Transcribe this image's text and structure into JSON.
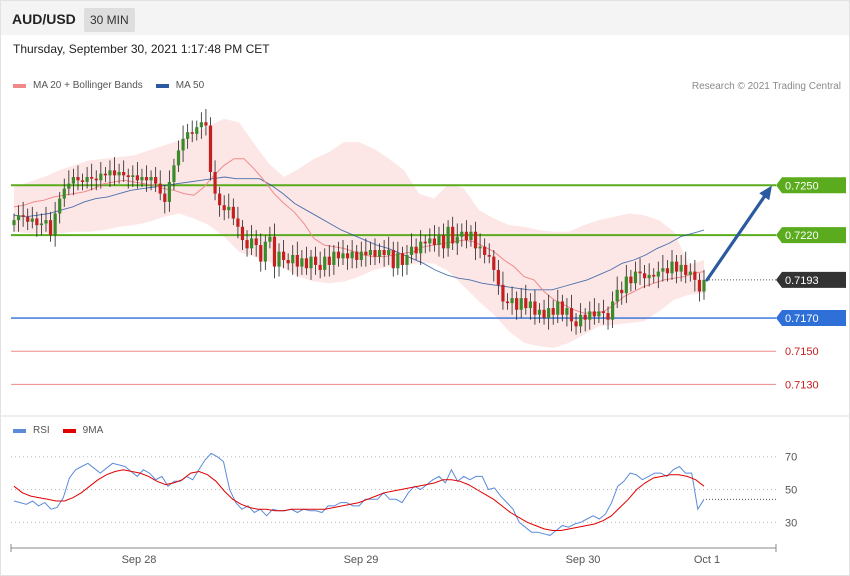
{
  "header": {
    "symbol": "AUD/USD",
    "timeframe": "30 MIN"
  },
  "datetime": "Thursday, September 30, 2021 1:17:48 PM CET",
  "credit": "Research © 2021 Trading Central",
  "legend_top": [
    {
      "label": "MA 20 + Bollinger Bands",
      "color": "#f08a8a"
    },
    {
      "label": "MA 50",
      "color": "#2c5aa0"
    }
  ],
  "legend_bottom": [
    {
      "label": "RSI",
      "color": "#5b8bd9"
    },
    {
      "label": "9MA",
      "color": "#e00000"
    }
  ],
  "colors": {
    "candle_up": "#3a8a2a",
    "candle_down": "#c52020",
    "resistance": "#5aab1e",
    "support": "#2e6fd8",
    "target": "#f08a8a",
    "arrow": "#2c5aa0",
    "band": "#fde6e6"
  },
  "chart_data": [
    {
      "type": "candlestick",
      "ylim": [
        0.7117,
        0.7302
      ],
      "x_ticks": [
        "Sep 28",
        "Sep 29",
        "Sep 30",
        "Oct 1"
      ],
      "current_price": 0.7193,
      "levels": [
        {
          "label": "0.7250",
          "value": 0.725,
          "kind": "resistance"
        },
        {
          "label": "0.7220",
          "value": 0.722,
          "kind": "resistance"
        },
        {
          "label": "0.7193",
          "value": 0.7193,
          "kind": "current"
        },
        {
          "label": "0.7170",
          "value": 0.717,
          "kind": "support"
        },
        {
          "label": "0.7150",
          "value": 0.715,
          "kind": "target"
        },
        {
          "label": "0.7130",
          "value": 0.713,
          "kind": "target"
        }
      ],
      "close": [
        0.7229,
        0.7232,
        0.7231,
        0.7228,
        0.723,
        0.7226,
        0.7227,
        0.7229,
        0.722,
        0.7233,
        0.7242,
        0.7248,
        0.7251,
        0.7255,
        0.7253,
        0.7252,
        0.7255,
        0.7254,
        0.7253,
        0.7257,
        0.7256,
        0.7259,
        0.7256,
        0.7258,
        0.7256,
        0.7255,
        0.7256,
        0.7253,
        0.7255,
        0.7253,
        0.7255,
        0.7251,
        0.7245,
        0.724,
        0.7252,
        0.7262,
        0.7271,
        0.7278,
        0.7282,
        0.7281,
        0.7285,
        0.7288,
        0.7286,
        0.7258,
        0.7245,
        0.7238,
        0.7235,
        0.7237,
        0.723,
        0.7225,
        0.7217,
        0.7212,
        0.7218,
        0.7214,
        0.7204,
        0.7216,
        0.7219,
        0.7201,
        0.721,
        0.7205,
        0.7203,
        0.7208,
        0.7201,
        0.7206,
        0.72,
        0.7207,
        0.7202,
        0.7199,
        0.7207,
        0.7202,
        0.721,
        0.7206,
        0.7209,
        0.7206,
        0.721,
        0.7205,
        0.721,
        0.7208,
        0.7211,
        0.7207,
        0.7211,
        0.7208,
        0.7211,
        0.72,
        0.7209,
        0.7202,
        0.7208,
        0.7213,
        0.7209,
        0.7216,
        0.7215,
        0.7218,
        0.7214,
        0.722,
        0.7212,
        0.7225,
        0.7215,
        0.7219,
        0.7222,
        0.7217,
        0.7222,
        0.7212,
        0.7213,
        0.7208,
        0.7207,
        0.7199,
        0.719,
        0.718,
        0.7179,
        0.7182,
        0.7175,
        0.7182,
        0.7176,
        0.718,
        0.7172,
        0.7175,
        0.717,
        0.7176,
        0.7172,
        0.718,
        0.7172,
        0.7176,
        0.7168,
        0.7165,
        0.7172,
        0.7169,
        0.7174,
        0.7171,
        0.7174,
        0.7173,
        0.7169,
        0.718,
        0.7187,
        0.7185,
        0.7195,
        0.7191,
        0.7198,
        0.7197,
        0.7194,
        0.7196,
        0.7195,
        0.7198,
        0.72,
        0.7197,
        0.7204,
        0.7198,
        0.7202,
        0.7196,
        0.7198,
        0.7193,
        0.7186,
        0.7193
      ],
      "series": [
        {
          "name": "MA 20 + Bollinger Bands",
          "role": "ma20",
          "values": [
            0.7237,
            0.7238,
            0.724,
            0.7241,
            0.7243,
            0.7244,
            0.7245,
            0.7246,
            0.7248,
            0.7251,
            0.7252,
            0.7253,
            0.7252,
            0.7251,
            0.725,
            0.7248,
            0.7247,
            0.7245,
            0.7244,
            0.7249,
            0.7256,
            0.7262,
            0.7266,
            0.7266,
            0.726,
            0.7253,
            0.7245,
            0.7239,
            0.7234,
            0.7227,
            0.7218,
            0.7214,
            0.7213,
            0.7212,
            0.721,
            0.7208,
            0.7207,
            0.7207,
            0.7208,
            0.7209,
            0.721,
            0.7213,
            0.7214,
            0.7215,
            0.7216,
            0.7217,
            0.7216,
            0.7213,
            0.721,
            0.7205,
            0.7201,
            0.7195,
            0.7193,
            0.7186,
            0.7181,
            0.7178,
            0.7175,
            0.7173,
            0.7173,
            0.7174,
            0.7178,
            0.7183,
            0.7186,
            0.7189,
            0.7191,
            0.7193,
            0.7194,
            0.7195,
            0.7197,
            0.7198
          ]
        },
        {
          "name": "MA 50",
          "role": "ma50",
          "values": [
            0.7232,
            0.7231,
            0.7232,
            0.7233,
            0.7235,
            0.7237,
            0.724,
            0.7242,
            0.7243,
            0.7245,
            0.7247,
            0.7248,
            0.7249,
            0.725,
            0.7251,
            0.7252,
            0.7253,
            0.7254,
            0.7255,
            0.7254,
            0.7254,
            0.7254,
            0.725,
            0.7245,
            0.7239,
            0.7235,
            0.7231,
            0.7227,
            0.7223,
            0.722,
            0.7217,
            0.7214,
            0.7212,
            0.7209,
            0.7206,
            0.7203,
            0.7199,
            0.7196,
            0.7194,
            0.7193,
            0.7191,
            0.719,
            0.7189,
            0.7188,
            0.7187,
            0.7187,
            0.7187,
            0.7189,
            0.7191,
            0.7193,
            0.7196,
            0.7199,
            0.7203,
            0.7205,
            0.7208,
            0.7212,
            0.7215,
            0.7219,
            0.7221,
            0.7223
          ]
        },
        {
          "name": "Bollinger upper",
          "role": "upper",
          "values": [
            0.7249,
            0.7252,
            0.7255,
            0.7259,
            0.7262,
            0.7265,
            0.7266,
            0.7267,
            0.7268,
            0.7271,
            0.7274,
            0.7277,
            0.7281,
            0.7286,
            0.729,
            0.7288,
            0.7275,
            0.7263,
            0.7255,
            0.726,
            0.7266,
            0.727,
            0.7276,
            0.7276,
            0.7272,
            0.7266,
            0.7259,
            0.7245,
            0.7242,
            0.7251,
            0.7248,
            0.7235,
            0.723,
            0.7226,
            0.7225,
            0.7223,
            0.7222,
            0.7222,
            0.7226,
            0.7229,
            0.7231,
            0.7233,
            0.7232,
            0.7229,
            0.7222,
            0.7202,
            0.7205
          ]
        },
        {
          "name": "Bollinger lower",
          "role": "lower",
          "values": [
            0.7222,
            0.7221,
            0.7221,
            0.7221,
            0.7222,
            0.7222,
            0.7223,
            0.7225,
            0.7226,
            0.7228,
            0.7231,
            0.7233,
            0.723,
            0.7226,
            0.7219,
            0.721,
            0.7207,
            0.7204,
            0.72,
            0.7195,
            0.7192,
            0.7191,
            0.7192,
            0.7195,
            0.7199,
            0.7201,
            0.7202,
            0.7203,
            0.7203,
            0.7198,
            0.7189,
            0.718,
            0.7172,
            0.7162,
            0.7155,
            0.7153,
            0.7152,
            0.7155,
            0.716,
            0.7165,
            0.7166,
            0.7167,
            0.7168,
            0.7174,
            0.7181,
            0.7184,
            0.7185
          ]
        },
        {
          "name": "Forecast",
          "role": "arrow",
          "values": [
            0.7193,
            0.725
          ]
        }
      ]
    },
    {
      "type": "line",
      "ylim": [
        18,
        82
      ],
      "y_ticks": [
        "70",
        "50",
        "30"
      ],
      "series": [
        {
          "name": "RSI",
          "values": [
            43,
            42,
            41,
            43,
            40,
            42,
            38,
            39,
            45,
            57,
            62,
            64,
            66,
            63,
            60,
            63,
            66,
            65,
            64,
            61,
            58,
            62,
            60,
            56,
            58,
            52,
            55,
            55,
            58,
            56,
            62,
            68,
            72,
            70,
            67,
            50,
            42,
            38,
            40,
            36,
            38,
            34,
            38,
            37,
            37,
            38,
            36,
            38,
            37,
            37,
            36,
            40,
            40,
            42,
            42,
            40,
            40,
            44,
            44,
            44,
            48,
            44,
            44,
            42,
            48,
            52,
            50,
            53,
            56,
            58,
            54,
            62,
            55,
            58,
            56,
            58,
            58,
            50,
            51,
            46,
            42,
            38,
            30,
            27,
            24,
            24,
            23,
            22,
            25,
            28,
            27,
            29,
            30,
            32,
            34,
            32,
            35,
            42,
            52,
            55,
            60,
            59,
            56,
            58,
            60,
            60,
            58,
            62,
            64,
            60,
            60,
            38,
            44
          ]
        },
        {
          "name": "9MA",
          "values": [
            52,
            48,
            46,
            45,
            44,
            43,
            43,
            45,
            48,
            52,
            56,
            59,
            61,
            62,
            61,
            60,
            58,
            55,
            53,
            54,
            56,
            60,
            61,
            59,
            55,
            49,
            44,
            41,
            39,
            38,
            38,
            37,
            37,
            38,
            38,
            38,
            38,
            38,
            39,
            40,
            41,
            42,
            44,
            46,
            48,
            49,
            50,
            51,
            52,
            53,
            54,
            56,
            56,
            55,
            53,
            50,
            47,
            44,
            40,
            36,
            33,
            30,
            28,
            26,
            25,
            25,
            26,
            27,
            28,
            29,
            31,
            34,
            39,
            44,
            50,
            54,
            57,
            58,
            59,
            59,
            58,
            56,
            52
          ]
        }
      ]
    }
  ]
}
